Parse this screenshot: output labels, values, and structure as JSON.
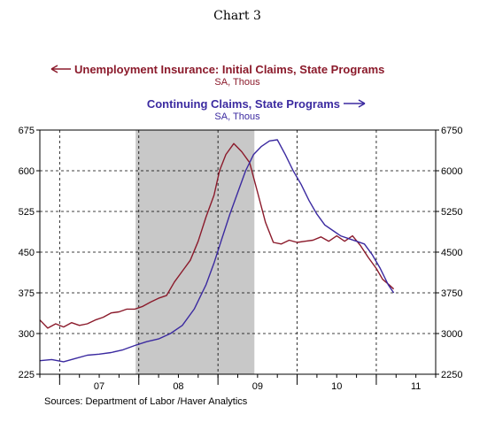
{
  "chart_data": {
    "type": "line",
    "title": "Chart 3",
    "x_tick_labels": [
      "07",
      "08",
      "09",
      "10",
      "11"
    ],
    "x_range": [
      2006.75,
      2011.75
    ],
    "recession_shading": [
      2007.96,
      2009.46
    ],
    "y_left": {
      "range": [
        225,
        675
      ],
      "ticks": [
        225,
        300,
        375,
        450,
        525,
        600,
        675
      ]
    },
    "y_right": {
      "range": [
        2250,
        6750
      ],
      "ticks": [
        2250,
        3000,
        3750,
        4500,
        5250,
        6000,
        6750
      ]
    },
    "grid": "dashed",
    "source": "Sources:  Department of Labor /Haver Analytics",
    "series": [
      {
        "name": "Unemployment Insurance: Initial Claims, State Programs",
        "subtitle": "SA, Thous",
        "axis": "left",
        "color": "#8b1a2b",
        "x": [
          2006.75,
          2006.85,
          2006.95,
          2007.05,
          2007.15,
          2007.25,
          2007.35,
          2007.45,
          2007.55,
          2007.65,
          2007.75,
          2007.85,
          2007.95,
          2008.05,
          2008.15,
          2008.25,
          2008.35,
          2008.45,
          2008.55,
          2008.65,
          2008.75,
          2008.85,
          2008.95,
          2009.02,
          2009.1,
          2009.2,
          2009.3,
          2009.4,
          2009.5,
          2009.6,
          2009.7,
          2009.8,
          2009.9,
          2010.0,
          2010.1,
          2010.2,
          2010.3,
          2010.4,
          2010.5,
          2010.6,
          2010.7,
          2010.8,
          2010.9,
          2011.0,
          2011.08,
          2011.16,
          2011.22
        ],
        "y": [
          325,
          310,
          318,
          312,
          320,
          315,
          318,
          325,
          330,
          338,
          340,
          345,
          345,
          350,
          358,
          365,
          370,
          395,
          415,
          435,
          470,
          515,
          555,
          600,
          630,
          650,
          635,
          615,
          560,
          505,
          468,
          465,
          472,
          468,
          470,
          472,
          478,
          470,
          480,
          470,
          480,
          462,
          440,
          420,
          400,
          390,
          382
        ]
      },
      {
        "name": "Continuing Claims, State Programs",
        "subtitle": "SA, Thous",
        "axis": "right",
        "color": "#3b2aa0",
        "x": [
          2006.75,
          2006.9,
          2007.05,
          2007.2,
          2007.35,
          2007.5,
          2007.65,
          2007.8,
          2007.95,
          2008.1,
          2008.25,
          2008.4,
          2008.55,
          2008.7,
          2008.85,
          2008.95,
          2009.05,
          2009.15,
          2009.25,
          2009.35,
          2009.45,
          2009.55,
          2009.65,
          2009.75,
          2009.85,
          2009.95,
          2010.05,
          2010.15,
          2010.25,
          2010.35,
          2010.45,
          2010.55,
          2010.65,
          2010.75,
          2010.85,
          2010.95,
          2011.05,
          2011.15,
          2011.22
        ],
        "y": [
          2500,
          2520,
          2480,
          2540,
          2600,
          2620,
          2650,
          2700,
          2780,
          2850,
          2900,
          3000,
          3150,
          3450,
          3900,
          4300,
          4750,
          5200,
          5600,
          6000,
          6300,
          6450,
          6550,
          6570,
          6300,
          6000,
          5750,
          5450,
          5200,
          5000,
          4900,
          4800,
          4750,
          4700,
          4650,
          4450,
          4200,
          3900,
          3750
        ]
      }
    ]
  }
}
